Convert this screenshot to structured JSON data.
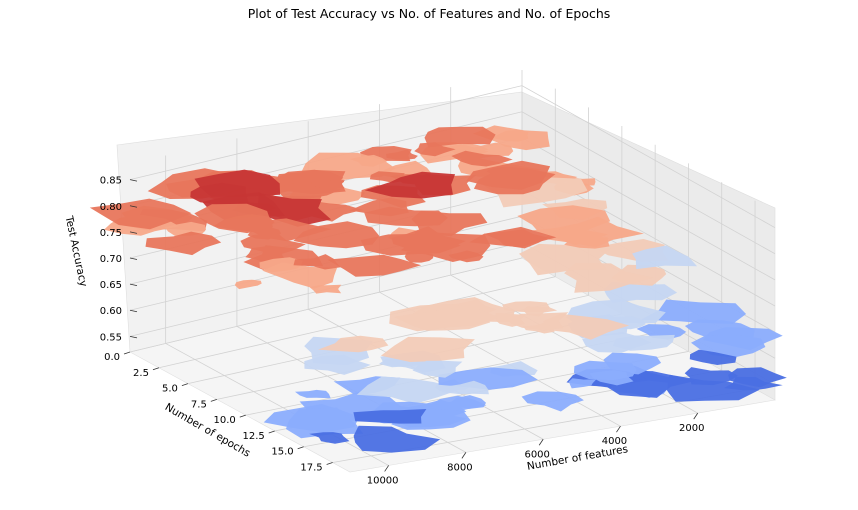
{
  "chart_data": {
    "type": "3d-contour",
    "title": "Plot of Test Accuracy vs No. of Features and No. of Epochs",
    "xlabel": "Number of features",
    "ylabel": "Number of epochs",
    "zlabel": "Test Accuracy",
    "xlim": [
      0,
      11000
    ],
    "ylim": [
      0,
      19
    ],
    "zlim": [
      0.52,
      0.88
    ],
    "x_ticks": [
      2000,
      4000,
      6000,
      8000,
      10000
    ],
    "x_tick_labels": [
      "2000",
      "4000",
      "6000",
      "8000",
      "10000"
    ],
    "y_ticks": [
      0,
      2.5,
      5,
      7.5,
      10,
      12.5,
      15,
      17.5
    ],
    "y_tick_labels": [
      "0.0",
      "2.5",
      "5.0",
      "7.5",
      "10.0",
      "12.5",
      "15.0",
      "17.5"
    ],
    "z_ticks": [
      0.55,
      0.6,
      0.65,
      0.7,
      0.75,
      0.8,
      0.85
    ],
    "z_tick_labels": [
      "0.55",
      "0.60",
      "0.65",
      "0.70",
      "0.75",
      "0.80",
      "0.85"
    ],
    "colormap": "coolwarm",
    "grid": true,
    "contour_levels": [
      {
        "level": 0.55,
        "color": "#4a6fe3"
      },
      {
        "level": 0.6,
        "color": "#8badfd"
      },
      {
        "level": 0.65,
        "color": "#c5d6f2"
      },
      {
        "level": 0.7,
        "color": "#f2cbb7"
      },
      {
        "level": 0.75,
        "color": "#f7a889"
      },
      {
        "level": 0.8,
        "color": "#e8765c"
      },
      {
        "level": 0.85,
        "color": "#c73635"
      }
    ],
    "surface_samples": [
      {
        "x": 1000,
        "y": 0,
        "z": 0.76
      },
      {
        "x": 3000,
        "y": 0,
        "z": 0.78
      },
      {
        "x": 5000,
        "y": 0,
        "z": 0.77
      },
      {
        "x": 7000,
        "y": 0,
        "z": 0.79
      },
      {
        "x": 9000,
        "y": 0,
        "z": 0.8
      },
      {
        "x": 10000,
        "y": 0,
        "z": 0.78
      },
      {
        "x": 1000,
        "y": 5,
        "z": 0.74
      },
      {
        "x": 3000,
        "y": 5,
        "z": 0.79
      },
      {
        "x": 5000,
        "y": 5,
        "z": 0.81
      },
      {
        "x": 7000,
        "y": 5,
        "z": 0.82
      },
      {
        "x": 9000,
        "y": 5,
        "z": 0.84
      },
      {
        "x": 10000,
        "y": 5,
        "z": 0.8
      },
      {
        "x": 1000,
        "y": 10,
        "z": 0.66
      },
      {
        "x": 3000,
        "y": 10,
        "z": 0.73
      },
      {
        "x": 5000,
        "y": 10,
        "z": 0.78
      },
      {
        "x": 7000,
        "y": 10,
        "z": 0.8
      },
      {
        "x": 9000,
        "y": 10,
        "z": 0.79
      },
      {
        "x": 10000,
        "y": 10,
        "z": 0.77
      },
      {
        "x": 1000,
        "y": 15,
        "z": 0.6
      },
      {
        "x": 3000,
        "y": 15,
        "z": 0.64
      },
      {
        "x": 5000,
        "y": 15,
        "z": 0.7
      },
      {
        "x": 7000,
        "y": 15,
        "z": 0.72
      },
      {
        "x": 9000,
        "y": 15,
        "z": 0.68
      },
      {
        "x": 10000,
        "y": 15,
        "z": 0.62
      },
      {
        "x": 1000,
        "y": 18,
        "z": 0.56
      },
      {
        "x": 3000,
        "y": 18,
        "z": 0.58
      },
      {
        "x": 5000,
        "y": 18,
        "z": 0.61
      },
      {
        "x": 7000,
        "y": 18,
        "z": 0.63
      },
      {
        "x": 9000,
        "y": 18,
        "z": 0.6
      },
      {
        "x": 10000,
        "y": 18,
        "z": 0.57
      }
    ]
  }
}
